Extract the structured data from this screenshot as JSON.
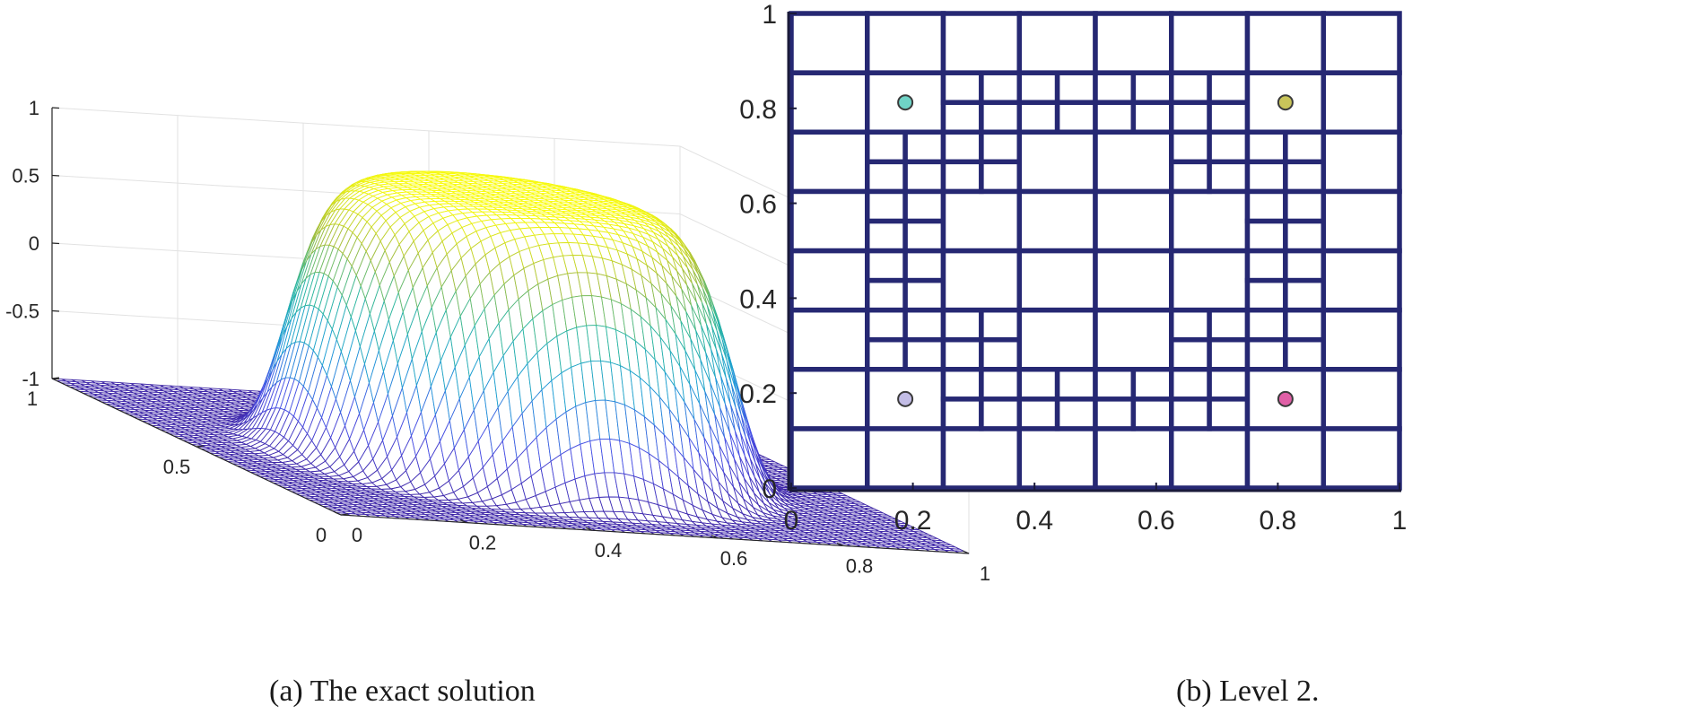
{
  "chart_data": [
    {
      "type": "surface",
      "title": "",
      "xlabel": "",
      "ylabel": "",
      "zlabel": "",
      "z_ticks": [
        "-1",
        "-0.5",
        "0",
        "0.5",
        "1"
      ],
      "x_ticks": [
        "0",
        "0.2",
        "0.4",
        "0.6",
        "0.8",
        "1"
      ],
      "y_ticks": [
        "0",
        "0.5",
        "1"
      ],
      "xlim": [
        0,
        1
      ],
      "ylim": [
        0,
        1
      ],
      "zlim": [
        -1,
        1
      ],
      "function": "plateau bump: z = -1 + 2*exp(-((x-0.5)^2+(y-0.5)^2)^4 / 0.00015)",
      "surface_min": -1,
      "surface_max": 1,
      "grid_resolution": 65,
      "colormap": "parula",
      "colormap_stops": [
        "#3e26a8",
        "#4a50e6",
        "#1e9ed8",
        "#2cb7a0",
        "#a7bf3a",
        "#f9fb0e"
      ],
      "grid": true,
      "caption": "(a) The exact solution"
    },
    {
      "type": "mesh",
      "title": "",
      "xlabel": "",
      "ylabel": "",
      "x_ticks": [
        "0",
        "0.2",
        "0.4",
        "0.6",
        "0.8",
        "1"
      ],
      "y_ticks": [
        "0",
        "0.2",
        "0.4",
        "0.6",
        "0.8",
        "1"
      ],
      "xlim": [
        0,
        1
      ],
      "ylim": [
        0,
        1
      ],
      "line_color": "#262873",
      "mesh_level": 2,
      "refinement_region": "0.25 < r < 0.44 from center (0.5, 0.5)",
      "points": [
        {
          "x": 0.1875,
          "y": 0.8125,
          "color": "#6fd3c6"
        },
        {
          "x": 0.8125,
          "y": 0.8125,
          "color": "#c9c55a"
        },
        {
          "x": 0.1875,
          "y": 0.1875,
          "color": "#c3bde6"
        },
        {
          "x": 0.8125,
          "y": 0.1875,
          "color": "#e05fa6"
        }
      ],
      "caption": "(b) Level 2."
    }
  ]
}
